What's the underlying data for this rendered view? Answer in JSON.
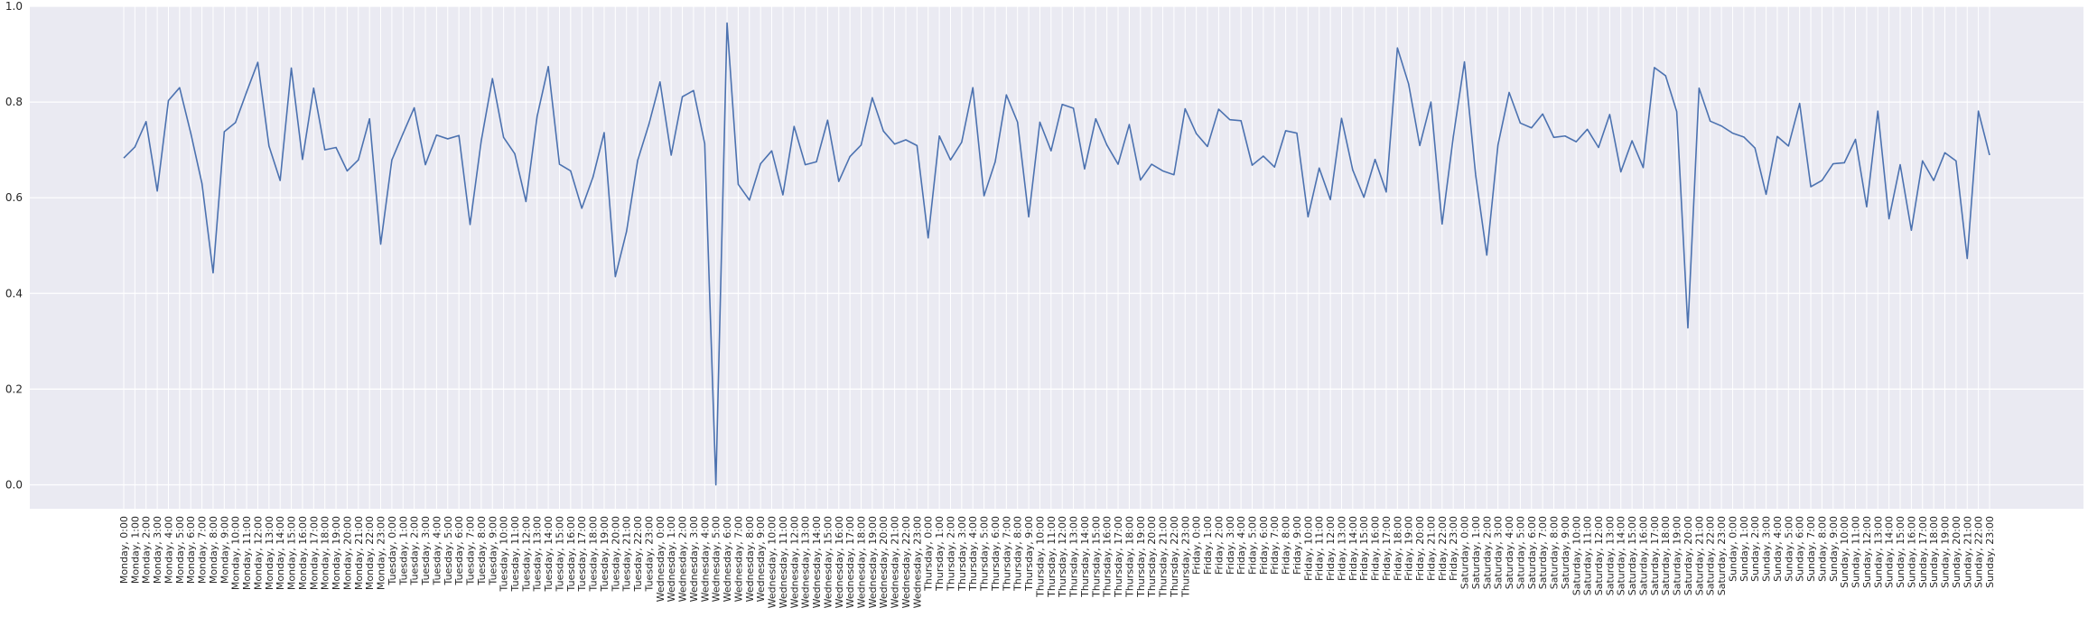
{
  "chart_data": {
    "type": "line",
    "title": "",
    "xlabel": "",
    "ylabel": "",
    "ylim": [
      -0.05,
      1.0
    ],
    "yticks": [
      "0.0",
      "0.2",
      "0.4",
      "0.6",
      "0.8",
      "1.0"
    ],
    "grid": true,
    "legend": "none",
    "colors": {
      "background": "#EAEAF2",
      "grid": "#FFFFFF",
      "line": "#4C72B0",
      "text": "#262626"
    },
    "days": [
      "Monday",
      "Tuesday",
      "Wednesday",
      "Thursday",
      "Friday",
      "Saturday",
      "Sunday"
    ],
    "series": [
      {
        "values": [
          0.683,
          0.706,
          0.759,
          0.614,
          0.803,
          0.83,
          0.735,
          0.63,
          0.443,
          0.738,
          0.757,
          0.821,
          0.883,
          0.708,
          0.636,
          0.871,
          0.68,
          0.829,
          0.7,
          0.705,
          0.656,
          0.679,
          0.765,
          0.503,
          0.679,
          0.734,
          0.788,
          0.669,
          0.731,
          0.723,
          0.73,
          0.544,
          0.719,
          0.849,
          0.726,
          0.692,
          0.592,
          0.77,
          0.874,
          0.67,
          0.656,
          0.578,
          0.643,
          0.736,
          0.435,
          0.529,
          0.678,
          0.753,
          0.842,
          0.689,
          0.811,
          0.824,
          0.713,
          0.0,
          0.965,
          0.628,
          0.595,
          0.671,
          0.698,
          0.606,
          0.749,
          0.669,
          0.675,
          0.762,
          0.634,
          0.686,
          0.71,
          0.809,
          0.739,
          0.712,
          0.721,
          0.709,
          0.516,
          0.729,
          0.679,
          0.716,
          0.83,
          0.604,
          0.675,
          0.815,
          0.758,
          0.56,
          0.758,
          0.698,
          0.795,
          0.787,
          0.66,
          0.765,
          0.71,
          0.67,
          0.753,
          0.637,
          0.67,
          0.656,
          0.648,
          0.786,
          0.734,
          0.707,
          0.785,
          0.763,
          0.761,
          0.668,
          0.687,
          0.664,
          0.74,
          0.735,
          0.56,
          0.662,
          0.596,
          0.766,
          0.658,
          0.601,
          0.68,
          0.612,
          0.913,
          0.838,
          0.709,
          0.8,
          0.545,
          0.727,
          0.884,
          0.648,
          0.48,
          0.71,
          0.82,
          0.756,
          0.746,
          0.775,
          0.726,
          0.729,
          0.717,
          0.743,
          0.705,
          0.774,
          0.654,
          0.719,
          0.663,
          0.872,
          0.855,
          0.78,
          0.328,
          0.829,
          0.76,
          0.75,
          0.735,
          0.727,
          0.704,
          0.607,
          0.728,
          0.708,
          0.797,
          0.623,
          0.636,
          0.671,
          0.673,
          0.722,
          0.581,
          0.781,
          0.556,
          0.669,
          0.532,
          0.677,
          0.636,
          0.694,
          0.677,
          0.473,
          0.781,
          0.689
        ]
      }
    ]
  }
}
